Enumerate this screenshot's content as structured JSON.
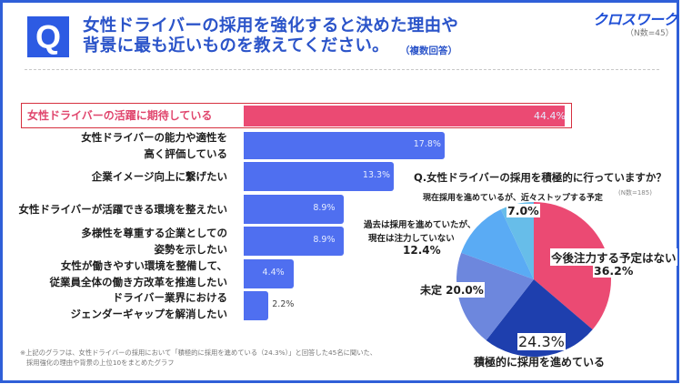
{
  "header": {
    "q_mark": "Q",
    "title_line1": "女性ドライバーの採用を強化すると決めた理由や",
    "title_line2": "背景に最も近いものを教えてください。",
    "title_note": "（複数回答）",
    "logo": "クロスワーク",
    "sample_size": "（N数=45）"
  },
  "colors": {
    "frame": "#2f5fd8",
    "bar": "#4f6ff0",
    "highlight_bar": "#eb4a73",
    "highlight_border": "#d6303f"
  },
  "chart_data": [
    {
      "type": "bar",
      "orientation": "horizontal",
      "title": "女性ドライバーの採用を強化すると決めた理由や背景に最も近いものを教えてください。（複数回答）",
      "n": "N数=45",
      "categories": [
        "女性ドライバーの活躍に期待している",
        "女性ドライバーの能力や適性を\n高く評価している",
        "企業イメージ向上に繋げたい",
        "女性ドライバーが活躍できる環境を整えたい",
        "多様性を尊重する企業としての\n姿勢を示したい",
        "女性が働きやすい環境を整備して、\n従業員全体の働き方改革を推進したい",
        "ドライバー業界における\nジェンダーギャップを解消したい"
      ],
      "values": [
        44.4,
        17.8,
        13.3,
        8.9,
        8.9,
        4.4,
        2.2
      ],
      "value_labels": [
        "44.4%",
        "17.8%",
        "13.3%",
        "8.9%",
        "8.9%",
        "4.4%",
        "2.2%"
      ],
      "highlighted_index": 0,
      "unit": "%"
    },
    {
      "type": "pie",
      "title": "Q.女性ドライバーの採用を積極的に行っていますか？",
      "n": "(N数=185)",
      "slices": [
        {
          "label": "今後注力する予定はない",
          "value": 36.2,
          "value_label": "36.2%",
          "color": "#eb4a73"
        },
        {
          "label": "積極的に採用を進めている",
          "value": 24.3,
          "value_label": "24.3%",
          "color": "#1e3fae"
        },
        {
          "label": "未定",
          "value": 20.0,
          "value_label": "20.0%",
          "color": "#6d87dd"
        },
        {
          "label": "過去は採用を進めていたが、\n現在は注力していない",
          "value": 12.4,
          "value_label": "12.4%",
          "color": "#5aabf4"
        },
        {
          "label": "現在採用を進めているが、近々ストップする予定",
          "value": 7.0,
          "value_label": "7.0%",
          "color": "#67bde9"
        }
      ],
      "start": "12 o'clock",
      "direction": "clockwise"
    }
  ],
  "pie_labels": {
    "s0_text": "今後注力する予定はない",
    "s0_val": "36.2%",
    "s1_val": "24.3%",
    "s1_text": "積極的に採用を進めている",
    "s2_combined": "未定 20.0%",
    "s3_line1": "過去は採用を進めていたが、",
    "s3_line2": "現在は注力していない",
    "s3_val": "12.4%",
    "s4_text": "現在採用を進めているが、近々ストップする予定",
    "s4_val": "7.0%"
  },
  "footnote": {
    "line1": "※上記のグラフは、女性ドライバーの採用において「積極的に採用を進めている（24.3%）」と回答した45名に聞いた、",
    "line2": "採用強化の理由や背景の上位10をまとめたグラフ"
  }
}
